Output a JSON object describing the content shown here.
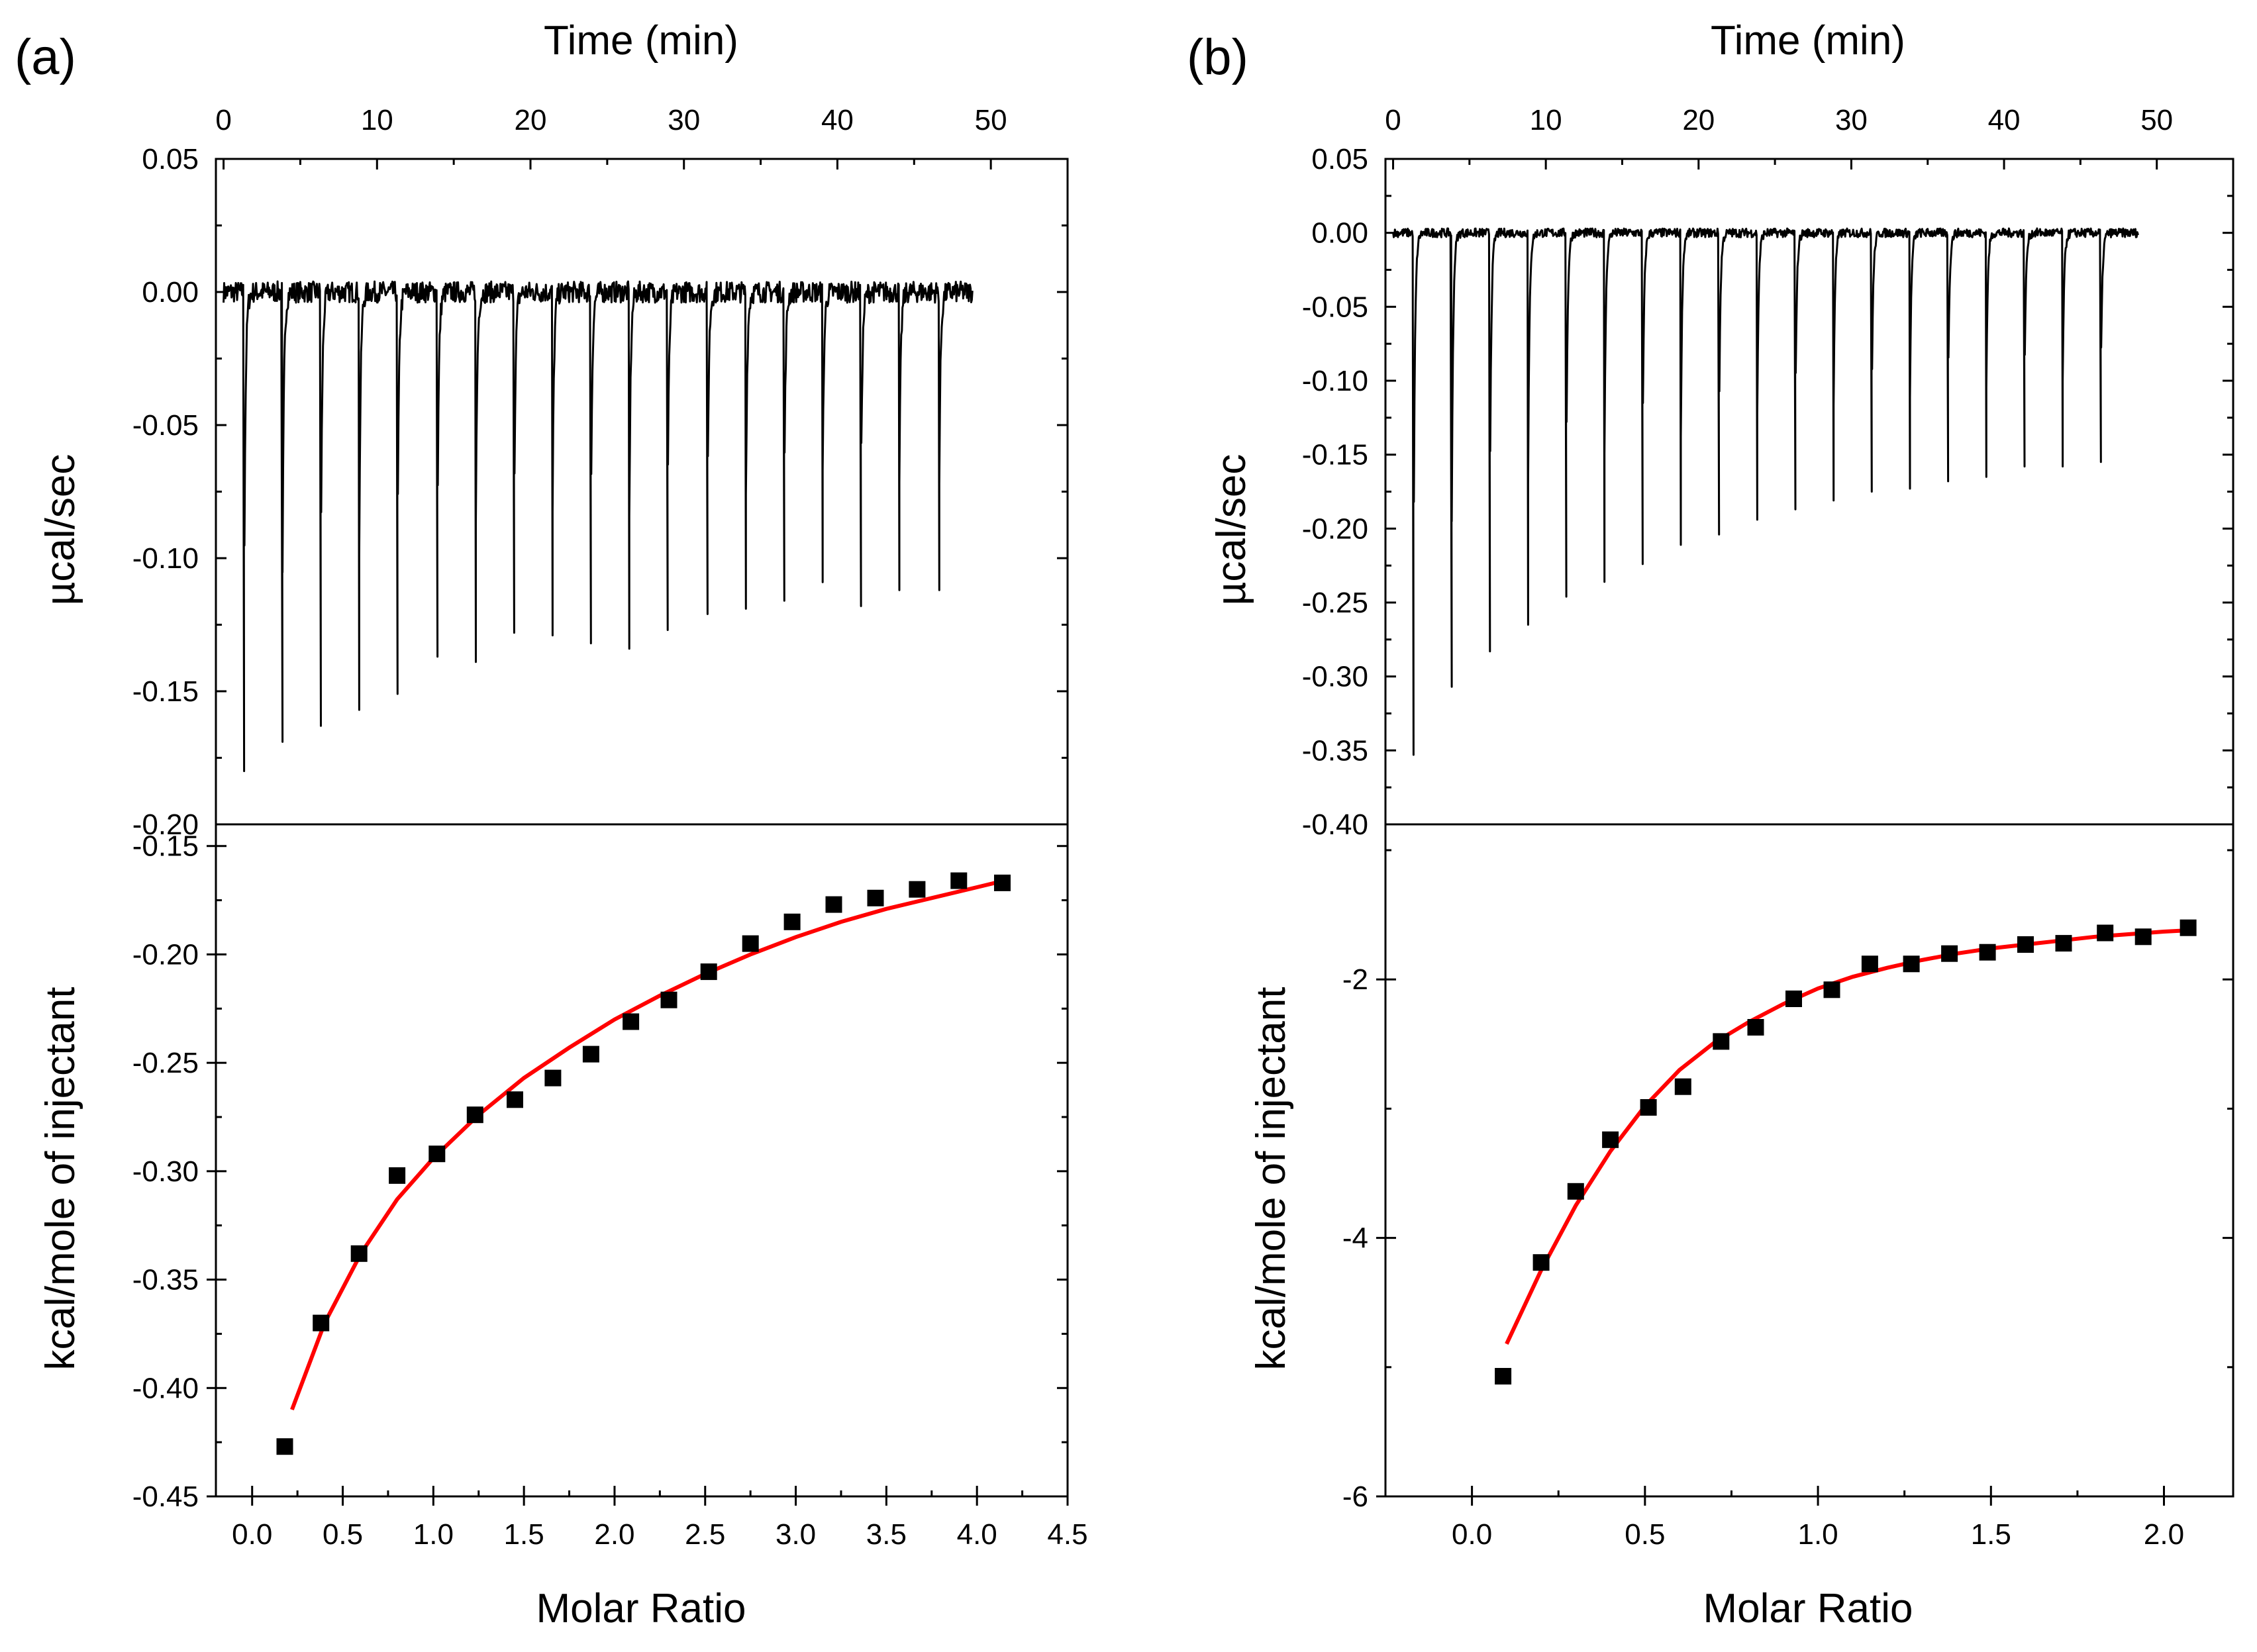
{
  "panels": [
    {
      "letter": "(a)",
      "top_axis_label": "Time (min)",
      "bottom_axis_label": "Molar Ratio",
      "chart_data": [
        {
          "type": "line",
          "name": "thermogram",
          "xlabel": "Time (min)",
          "ylabel": "µcal/sec",
          "xlim": [
            -0.5,
            55
          ],
          "ylim": [
            -0.2,
            0.05
          ],
          "xticks": [
            0,
            10,
            20,
            30,
            40,
            50
          ],
          "yticks": [
            0.05,
            0.0,
            -0.05,
            -0.1,
            -0.15,
            -0.2
          ],
          "ytick_labels": [
            "0.05",
            "0.00",
            "-0.05",
            "-0.10",
            "-0.15",
            "-0.20"
          ],
          "baseline": 0.0,
          "time_range": [
            0,
            48.8
          ],
          "injection_times": [
            1.3,
            3.8,
            6.3,
            8.8,
            11.3,
            13.9,
            16.4,
            18.9,
            21.4,
            23.9,
            26.4,
            28.9,
            31.5,
            34.0,
            36.5,
            39.0,
            41.5,
            44.0,
            46.6
          ],
          "injection_peaks": [
            -0.18,
            -0.169,
            -0.163,
            -0.157,
            -0.151,
            -0.137,
            -0.139,
            -0.128,
            -0.129,
            -0.132,
            -0.134,
            -0.127,
            -0.121,
            -0.119,
            -0.116,
            -0.109,
            -0.118,
            -0.112,
            -0.112
          ]
        },
        {
          "type": "scatter",
          "name": "binding isotherm",
          "xlabel": "Molar Ratio",
          "ylabel": "kcal/mole of injectant",
          "xlim": [
            -0.2,
            4.5
          ],
          "ylim": [
            -0.45,
            -0.14
          ],
          "xticks": [
            0.0,
            0.5,
            1.0,
            1.5,
            2.0,
            2.5,
            3.0,
            3.5,
            4.0,
            4.5
          ],
          "xtick_labels": [
            "0.0",
            "0.5",
            "1.0",
            "1.5",
            "2.0",
            "2.5",
            "3.0",
            "3.5",
            "4.0",
            "4.5"
          ],
          "yticks": [
            -0.15,
            -0.2,
            -0.25,
            -0.3,
            -0.35,
            -0.4,
            -0.45
          ],
          "ytick_labels": [
            "-0.15",
            "-0.20",
            "-0.25",
            "-0.30",
            "-0.35",
            "-0.40",
            "-0.45"
          ],
          "x": [
            0.18,
            0.38,
            0.59,
            0.8,
            1.02,
            1.23,
            1.45,
            1.66,
            1.87,
            2.09,
            2.3,
            2.52,
            2.75,
            2.98,
            3.21,
            3.44,
            3.67,
            3.9,
            4.14
          ],
          "y": [
            -0.427,
            -0.37,
            -0.338,
            -0.302,
            -0.292,
            -0.274,
            -0.267,
            -0.257,
            -0.246,
            -0.231,
            -0.221,
            -0.208,
            -0.195,
            -0.185,
            -0.177,
            -0.174,
            -0.17,
            -0.166,
            -0.167
          ],
          "fit": {
            "x": [
              0.22,
              0.4,
              0.6,
              0.8,
              1.0,
              1.25,
              1.5,
              1.75,
              2.0,
              2.25,
              2.5,
              2.75,
              3.0,
              3.25,
              3.5,
              3.75,
              4.0,
              4.15
            ],
            "y": [
              -0.41,
              -0.37,
              -0.338,
              -0.313,
              -0.294,
              -0.274,
              -0.257,
              -0.243,
              -0.23,
              -0.219,
              -0.209,
              -0.2,
              -0.192,
              -0.185,
              -0.179,
              -0.174,
              -0.169,
              -0.166
            ]
          }
        }
      ]
    },
    {
      "letter": "(b)",
      "top_axis_label": "Time (min)",
      "bottom_axis_label": "Molar Ratio",
      "chart_data": [
        {
          "type": "line",
          "name": "thermogram",
          "xlabel": "Time (min)",
          "ylabel": "µcal/sec",
          "xlim": [
            -0.5,
            55
          ],
          "ylim": [
            -0.4,
            0.05
          ],
          "xticks": [
            0,
            10,
            20,
            30,
            40,
            50
          ],
          "yticks": [
            0.05,
            0.0,
            -0.05,
            -0.1,
            -0.15,
            -0.2,
            -0.25,
            -0.3,
            -0.35,
            -0.4
          ],
          "ytick_labels": [
            "0.05",
            "0.00",
            "-0.05",
            "-0.10",
            "-0.15",
            "-0.20",
            "-0.25",
            "-0.30",
            "-0.35",
            "-0.40"
          ],
          "baseline": 0.0,
          "time_range": [
            0,
            48.8
          ],
          "injection_times": [
            1.3,
            3.8,
            6.3,
            8.8,
            11.3,
            13.8,
            16.3,
            18.8,
            21.3,
            23.8,
            26.3,
            28.8,
            31.3,
            33.8,
            36.3,
            38.8,
            41.3,
            43.8,
            46.3
          ],
          "injection_peaks": [
            -0.353,
            -0.307,
            -0.283,
            -0.265,
            -0.246,
            -0.236,
            -0.224,
            -0.211,
            -0.204,
            -0.194,
            -0.187,
            -0.181,
            -0.175,
            -0.173,
            -0.168,
            -0.165,
            -0.158,
            -0.158,
            -0.155
          ]
        },
        {
          "type": "scatter",
          "name": "binding isotherm",
          "xlabel": "Molar Ratio",
          "ylabel": "kcal/mole of injectant",
          "xlim": [
            -0.25,
            2.2
          ],
          "ylim": [
            -6,
            -0.8
          ],
          "xticks": [
            0.0,
            0.5,
            1.0,
            1.5,
            2.0
          ],
          "xtick_labels": [
            "0.0",
            "0.5",
            "1.0",
            "1.5",
            "2.0"
          ],
          "yticks": [
            -2,
            -4,
            -6
          ],
          "ytick_labels": [
            "-2",
            "-4",
            "-6"
          ],
          "x": [
            0.09,
            0.2,
            0.3,
            0.4,
            0.51,
            0.61,
            0.72,
            0.82,
            0.93,
            1.04,
            1.15,
            1.27,
            1.38,
            1.49,
            1.6,
            1.71,
            1.83,
            1.94,
            2.07
          ],
          "y": [
            -5.07,
            -4.19,
            -3.64,
            -3.24,
            -2.99,
            -2.83,
            -2.48,
            -2.37,
            -2.15,
            -2.08,
            -1.88,
            -1.88,
            -1.8,
            -1.79,
            -1.73,
            -1.72,
            -1.64,
            -1.67,
            -1.6
          ],
          "fit": {
            "x": [
              0.1,
              0.2,
              0.3,
              0.4,
              0.5,
              0.6,
              0.7,
              0.8,
              0.9,
              1.0,
              1.1,
              1.2,
              1.3,
              1.4,
              1.5,
              1.6,
              1.7,
              1.8,
              1.9,
              2.0,
              2.07
            ],
            "y": [
              -4.82,
              -4.25,
              -3.75,
              -3.33,
              -2.98,
              -2.7,
              -2.49,
              -2.33,
              -2.19,
              -2.07,
              -1.98,
              -1.91,
              -1.85,
              -1.8,
              -1.76,
              -1.73,
              -1.7,
              -1.67,
              -1.65,
              -1.63,
              -1.62
            ]
          }
        }
      ]
    }
  ]
}
